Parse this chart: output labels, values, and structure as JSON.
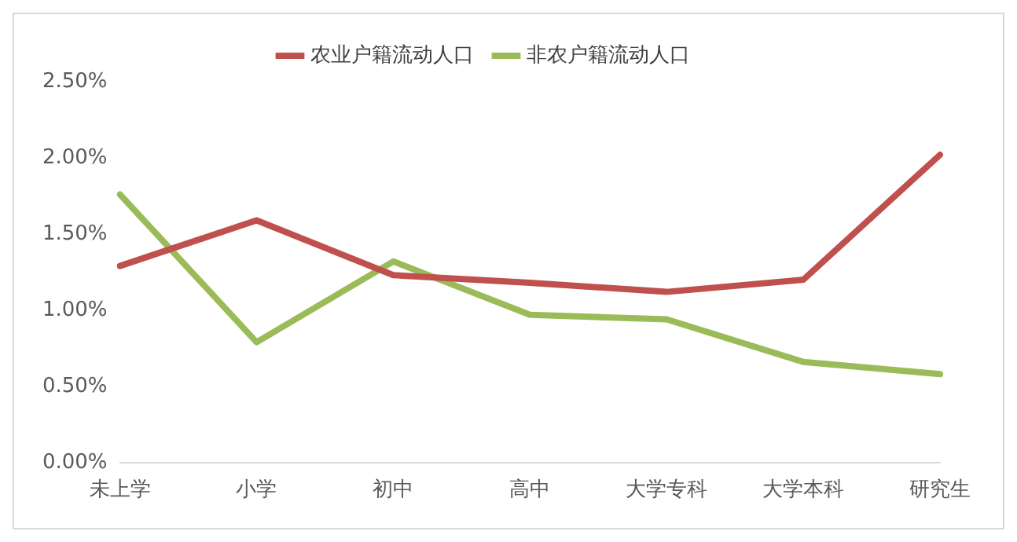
{
  "chart_data": {
    "type": "line",
    "categories": [
      "未上学",
      "小学",
      "初中",
      "高中",
      "大学专科",
      "大学本科",
      "研究生"
    ],
    "series": [
      {
        "name": "农业户籍流动人口",
        "color": "#c0504d",
        "values": [
          1.29,
          1.59,
          1.23,
          1.18,
          1.12,
          1.2,
          2.02
        ]
      },
      {
        "name": "非农户籍流动人口",
        "color": "#9bbb59",
        "values": [
          1.76,
          0.79,
          1.32,
          0.97,
          0.94,
          0.66,
          0.58
        ]
      }
    ],
    "ylim": [
      0,
      2.5
    ],
    "yticks": [
      {
        "value": 0,
        "label": "0.00%"
      },
      {
        "value": 0.5,
        "label": "0.50%"
      },
      {
        "value": 1,
        "label": "1.00%"
      },
      {
        "value": 1.5,
        "label": "1.50%"
      },
      {
        "value": 2,
        "label": "2.00%"
      },
      {
        "value": 2.5,
        "label": "2.50%"
      }
    ],
    "grid": false,
    "legend": "top",
    "marker": "none",
    "line_style": "solid"
  }
}
